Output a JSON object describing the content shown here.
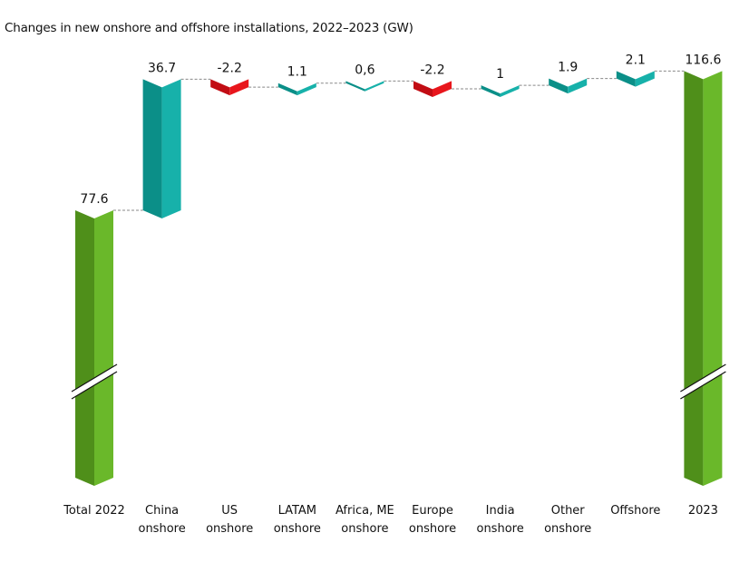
{
  "chart_data": {
    "type": "waterfall",
    "title": "Changes in new onshore and offshore installations, 2022–2023 (GW)",
    "xlabel": "",
    "ylabel": "",
    "axis_break": true,
    "grid": false,
    "legend": null,
    "categories": [
      [
        "Total 2022"
      ],
      [
        "China",
        "onshore"
      ],
      [
        "US",
        "onshore"
      ],
      [
        "LATAM",
        "onshore"
      ],
      [
        "Africa, ME",
        "onshore"
      ],
      [
        "Europe",
        "onshore"
      ],
      [
        "India",
        "onshore"
      ],
      [
        "Other",
        "onshore"
      ],
      [
        "Offshore"
      ],
      [
        "2023"
      ]
    ],
    "values": [
      77.6,
      36.7,
      -2.2,
      1.1,
      0.6,
      -2.2,
      1,
      1.9,
      2.1,
      116.6
    ],
    "value_labels": [
      "77.6",
      "36.7",
      "-2.2",
      "1.1",
      "0,6",
      "-2.2",
      "1",
      "1.9",
      "2.1",
      "116.6"
    ],
    "kinds": [
      "total",
      "delta",
      "delta",
      "delta",
      "delta",
      "delta",
      "delta",
      "delta",
      "delta",
      "total"
    ],
    "colors": {
      "total_dark": "#4f8f1a",
      "total_light": "#6ab82a",
      "increase_dark": "#0b8f88",
      "increase_light": "#17b1aa",
      "decrease_dark": "#c20d14",
      "decrease_light": "#e8161c",
      "connector": "#888888"
    }
  }
}
